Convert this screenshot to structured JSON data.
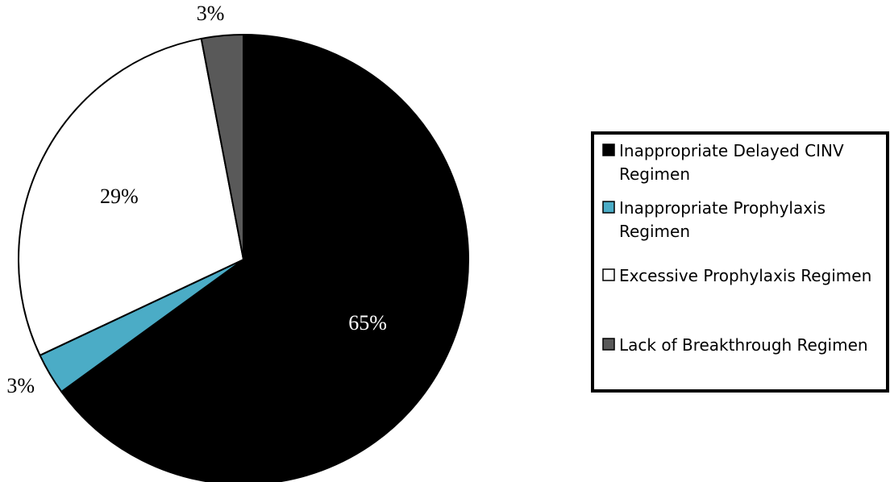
{
  "chart_data": {
    "type": "pie",
    "slices": [
      {
        "label": "Inappropriate Delayed CINV Regimen",
        "value": 65,
        "display": "65%",
        "color": "#000000",
        "label_color": "#ffffff",
        "label_position": "inside"
      },
      {
        "label": "Inappropriate Prophylaxis Regimen",
        "value": 3,
        "display": "3%",
        "color": "#4bacc6",
        "label_color": "#000000",
        "label_position": "outside"
      },
      {
        "label": "Excessive Prophylaxis Regimen",
        "value": 29,
        "display": "29%",
        "color": "#ffffff",
        "label_color": "#000000",
        "label_position": "inside"
      },
      {
        "label": "Lack of Breakthrough Regimen",
        "value": 3,
        "display": "3%",
        "color": "#595959",
        "label_color": "#000000",
        "label_position": "outside"
      }
    ],
    "start_angle": "12 o'clock",
    "direction": "clockwise",
    "legend": {
      "position": "right",
      "entries": [
        [
          "Inappropriate Delayed CINV",
          "Regimen"
        ],
        [
          "Inappropriate Prophylaxis",
          "Regimen"
        ],
        [
          "Excessive Prophylaxis Regimen"
        ],
        [
          "Lack of Breakthrough Regimen"
        ]
      ]
    },
    "title": "",
    "xlabel": "",
    "ylabel": ""
  }
}
